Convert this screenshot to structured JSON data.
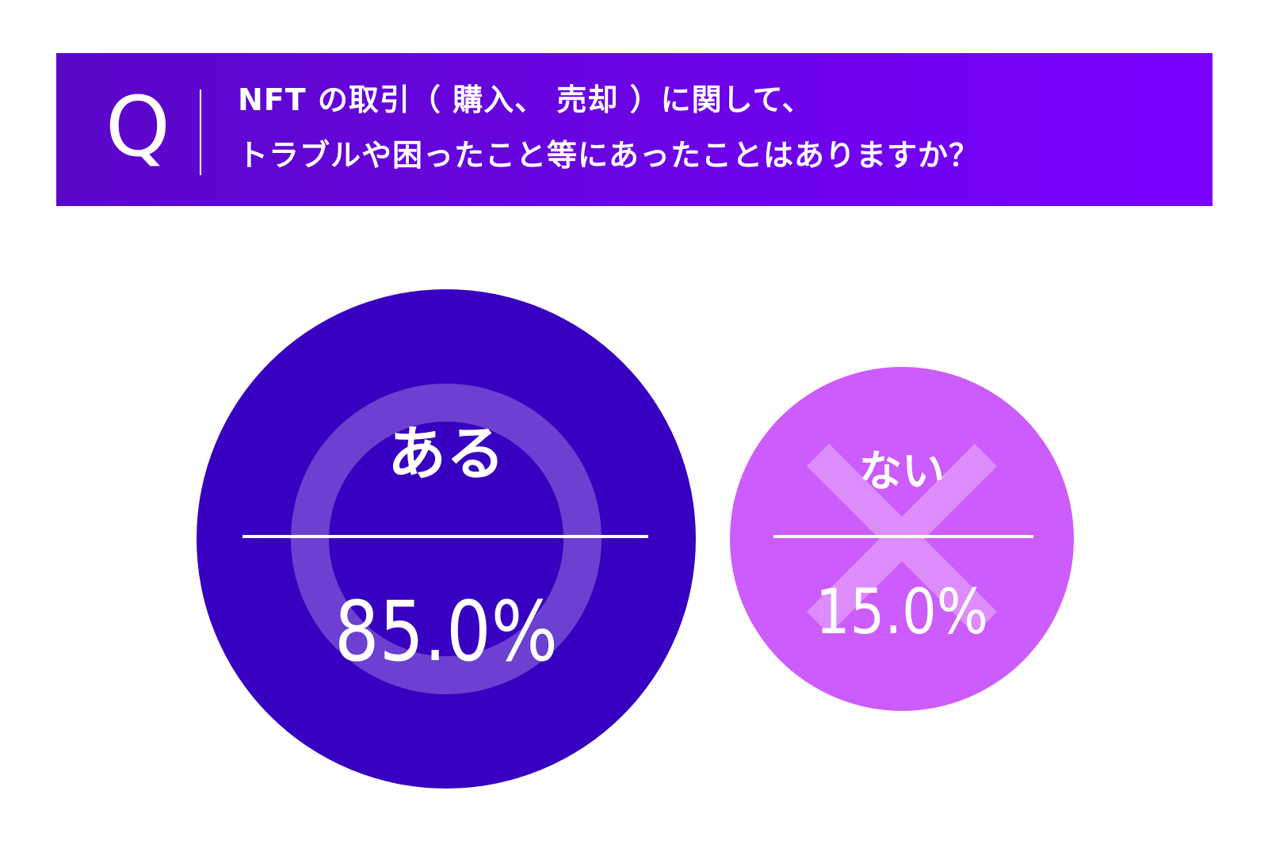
{
  "question": {
    "marker": "Q",
    "line1": "NFT の取引（ 購入、 売却 ）に関して、",
    "line2": "トラブルや困ったこと等にあったことはありますか？"
  },
  "colors": {
    "banner_left": "#5a07c8",
    "banner_right": "#7a00ff",
    "yes_circle": "#3800c0",
    "yes_ring": "#6c40d0",
    "no_circle": "#cc5cfb",
    "no_cross": "#dd8cfc",
    "text": "#ffffff"
  },
  "chart_data": {
    "type": "bubble",
    "categories": [
      "ある",
      "ない"
    ],
    "values": [
      85.0,
      15.0
    ],
    "value_labels": [
      "85.0%",
      "15.0%"
    ],
    "icons": [
      "circle-mark-icon",
      "cross-mark-icon"
    ],
    "unit": "%"
  }
}
